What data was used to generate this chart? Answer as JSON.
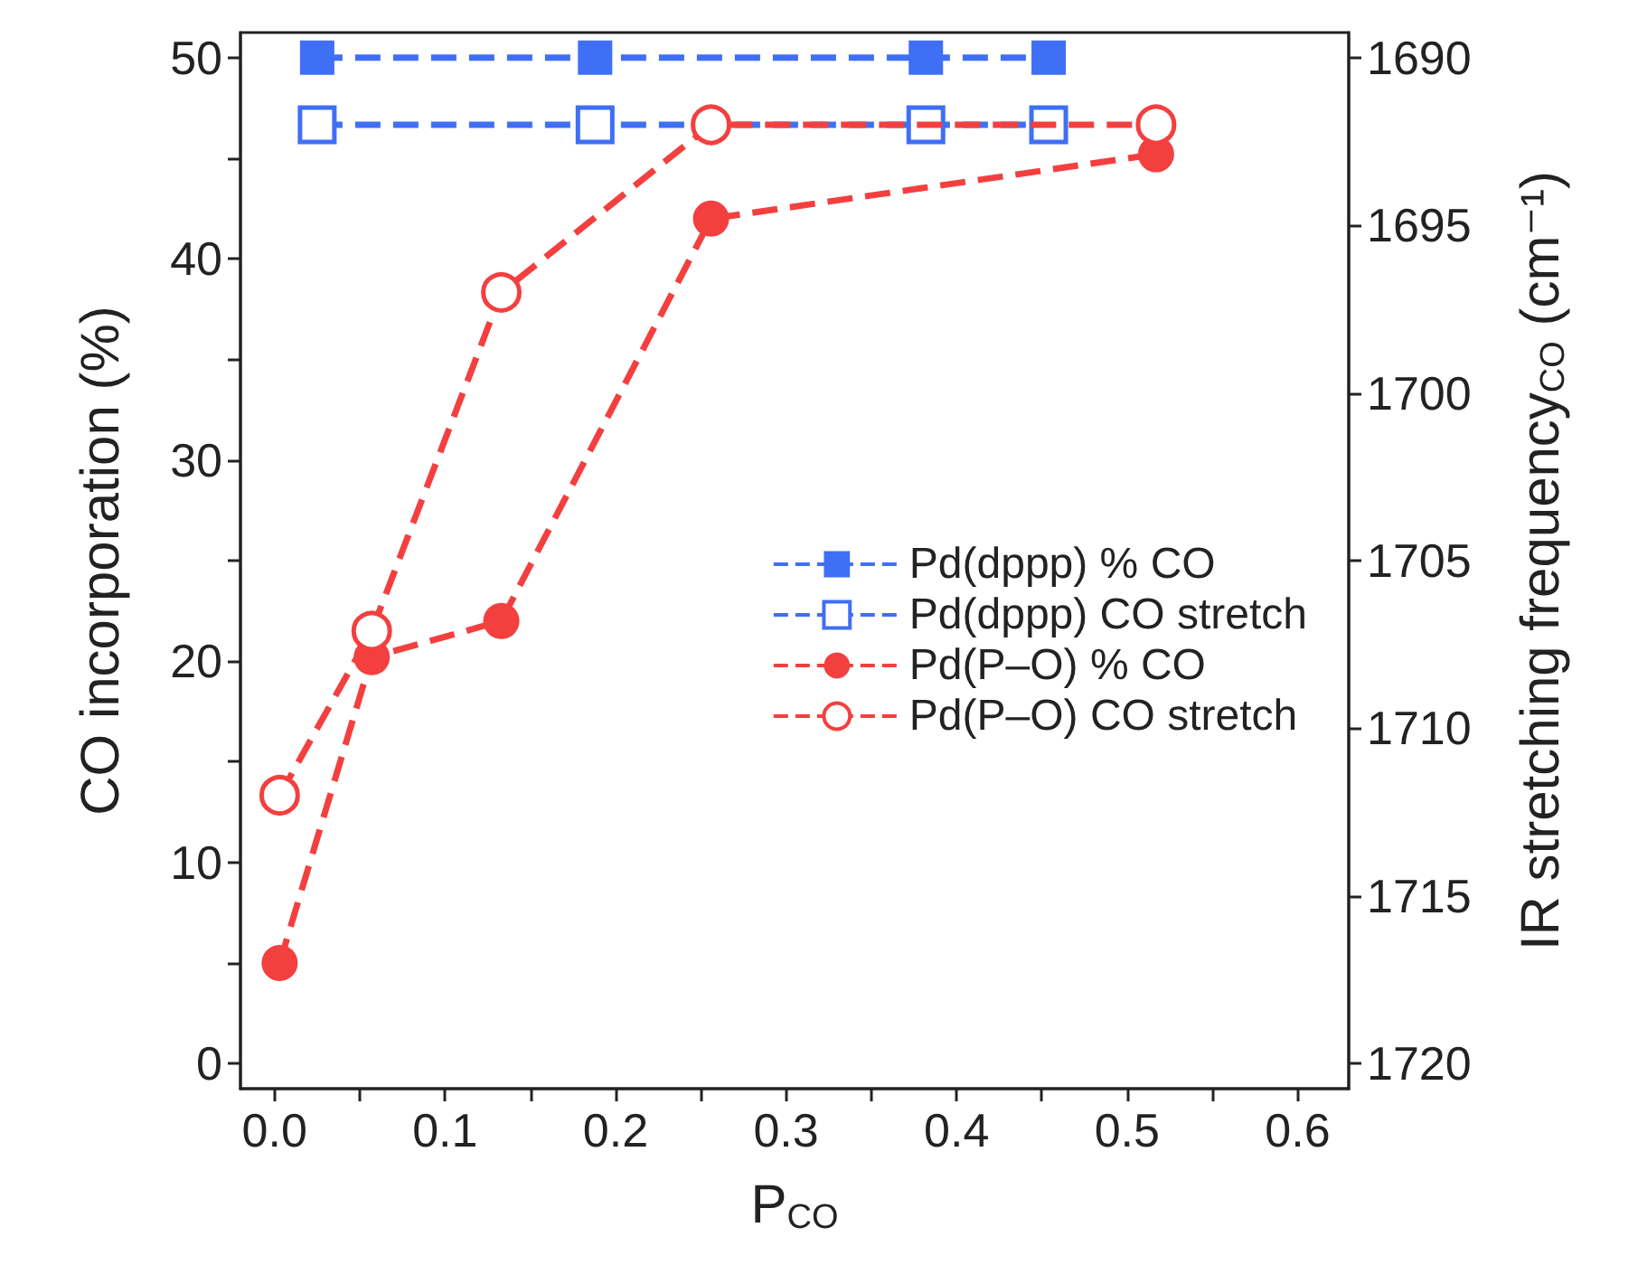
{
  "chart_data": {
    "type": "line",
    "xlabel": "P$_{CO}$",
    "ylabel": "CO incorporation (%)",
    "y2label": "IR stretching frequency$_{CO}$ (cm⁻¹)",
    "xlim": [
      -0.02,
      0.63
    ],
    "xticks": [
      {
        "value": 0,
        "label": "0.0"
      },
      {
        "value": 0.05,
        "label": null
      },
      {
        "value": 0.1,
        "label": "0.1"
      },
      {
        "value": 0.15,
        "label": null
      },
      {
        "value": 0.2,
        "label": "0.2"
      },
      {
        "value": 0.25,
        "label": null
      },
      {
        "value": 0.3,
        "label": "0.3"
      },
      {
        "value": 0.35,
        "label": null
      },
      {
        "value": 0.4,
        "label": "0.4"
      },
      {
        "value": 0.45,
        "label": null
      },
      {
        "value": 0.5,
        "label": "0.5"
      },
      {
        "value": 0.55,
        "label": null
      },
      {
        "value": 0.6,
        "label": "0.6"
      }
    ],
    "ylim": [
      -1.25,
      51.25
    ],
    "yticks": [
      0,
      {
        "value": 5,
        "label": null
      },
      10,
      {
        "value": 15,
        "label": null
      },
      20,
      {
        "value": 25,
        "label": null
      },
      30,
      {
        "value": 35,
        "label": null
      },
      40,
      {
        "value": 45,
        "label": null
      },
      50
    ],
    "y2lim": [
      1720.75,
      1689.25
    ],
    "y2ticks": [
      1690,
      1695,
      1700,
      1705,
      1710,
      1715,
      1720
    ],
    "grid": false,
    "legend": "right",
    "line_style": "dashed",
    "series": [
      {
        "name": "Pd(dppp) % CO",
        "color": "#3f6ff5",
        "marker": "square",
        "x": [
          0.025,
          0.188,
          0.382,
          0.454
        ],
        "values": [
          50,
          50,
          50,
          50
        ]
      },
      {
        "name": "Pd(dppp) CO stretch",
        "color": "#3f6ff5",
        "marker": "square",
        "axis": "y2",
        "x": [
          0.025,
          0.188,
          0.382,
          0.454
        ],
        "values": [
          1692,
          1692,
          1692,
          1692
        ]
      },
      {
        "name": "Pd(P–O) % CO",
        "color": "#f43f3f",
        "marker": "circle",
        "x": [
          0.003,
          0.057,
          0.133,
          0.256,
          0.517
        ],
        "values": [
          5,
          20.2,
          22,
          42,
          45.2
        ]
      },
      {
        "name": "Pd(P–O) CO stretch",
        "color": "#f43f3f",
        "marker": "circle",
        "axis": "y2",
        "x": [
          0.003,
          0.057,
          0.133,
          0.256,
          0.517
        ],
        "values": [
          1712,
          1707.1,
          1697,
          1692,
          1692
        ]
      }
    ]
  }
}
